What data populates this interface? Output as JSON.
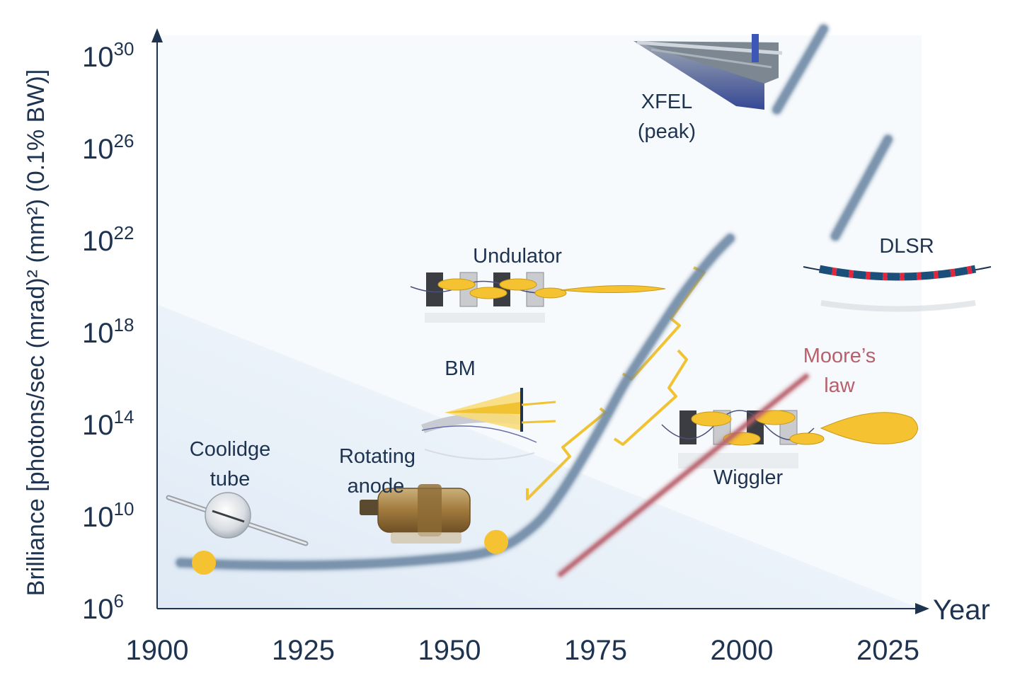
{
  "chart_data": {
    "type": "line",
    "title": "",
    "xlabel": "Year",
    "ylabel": "Brilliance [photons/sec (mrad)² (mm²) (0.1% BW)]",
    "xlim": [
      1900,
      2030
    ],
    "ylim_log10": [
      6,
      31
    ],
    "yscale": "log",
    "grid": false,
    "x_ticks": [
      "1900",
      "1925",
      "1950",
      "1975",
      "2000",
      "2025"
    ],
    "x_tick_values": [
      1900,
      1925,
      1950,
      1975,
      2000,
      2025
    ],
    "y_ticks": [
      {
        "base": "10",
        "exp": "6",
        "log10": 6
      },
      {
        "base": "10",
        "exp": "10",
        "log10": 10
      },
      {
        "base": "10",
        "exp": "14",
        "log10": 14
      },
      {
        "base": "10",
        "exp": "18",
        "log10": 18
      },
      {
        "base": "10",
        "exp": "22",
        "log10": 22
      },
      {
        "base": "10",
        "exp": "26",
        "log10": 26
      },
      {
        "base": "10",
        "exp": "30",
        "log10": 30
      }
    ],
    "series": [
      {
        "key": "main",
        "x": [
          1904,
          1915,
          1930,
          1945,
          1957,
          1964,
          1969,
          1975,
          1980,
          1985,
          1990,
          1995,
          1998
        ],
        "y_log10": [
          8.0,
          7.9,
          7.9,
          8.1,
          8.5,
          9.5,
          11.0,
          13.5,
          15.8,
          17.8,
          19.7,
          21.3,
          22.1
        ],
        "color": "#6f8aa6"
      },
      {
        "key": "dlsr",
        "x": [
          2016,
          2025
        ],
        "y_log10": [
          22.2,
          26.4
        ],
        "color": "#6f8aa6"
      },
      {
        "key": "xfel",
        "x": [
          2006,
          2014
        ],
        "y_log10": [
          27.7,
          31.2
        ],
        "color": "#6f8aa6"
      },
      {
        "key": "moores",
        "x": [
          1969,
          2011
        ],
        "y_log10": [
          7.5,
          16.1
        ],
        "color": "#b8606c"
      }
    ],
    "markers": [
      {
        "x": 1908,
        "y_log10": 8.0,
        "color": "#f5c231"
      },
      {
        "x": 1958,
        "y_log10": 8.9,
        "color": "#f5c231"
      }
    ],
    "annotations": {
      "coolidge": [
        "Coolidge",
        "tube"
      ],
      "rotating": [
        "Rotating",
        "anode"
      ],
      "bm": "BM",
      "undulator": "Undulator",
      "wiggler": "Wiggler",
      "xfel": [
        "XFEL",
        "(peak)"
      ],
      "dlsr": "DLSR",
      "moores": [
        "Moore’s",
        "law"
      ]
    },
    "colors": {
      "axis": "#1e3350",
      "text": "#1e3350",
      "curve": "#6f8aa6",
      "moore": "#b8606c",
      "marker": "#f5c231",
      "bracket": "#f1c232",
      "background_tint": "#dfe9f4"
    }
  }
}
